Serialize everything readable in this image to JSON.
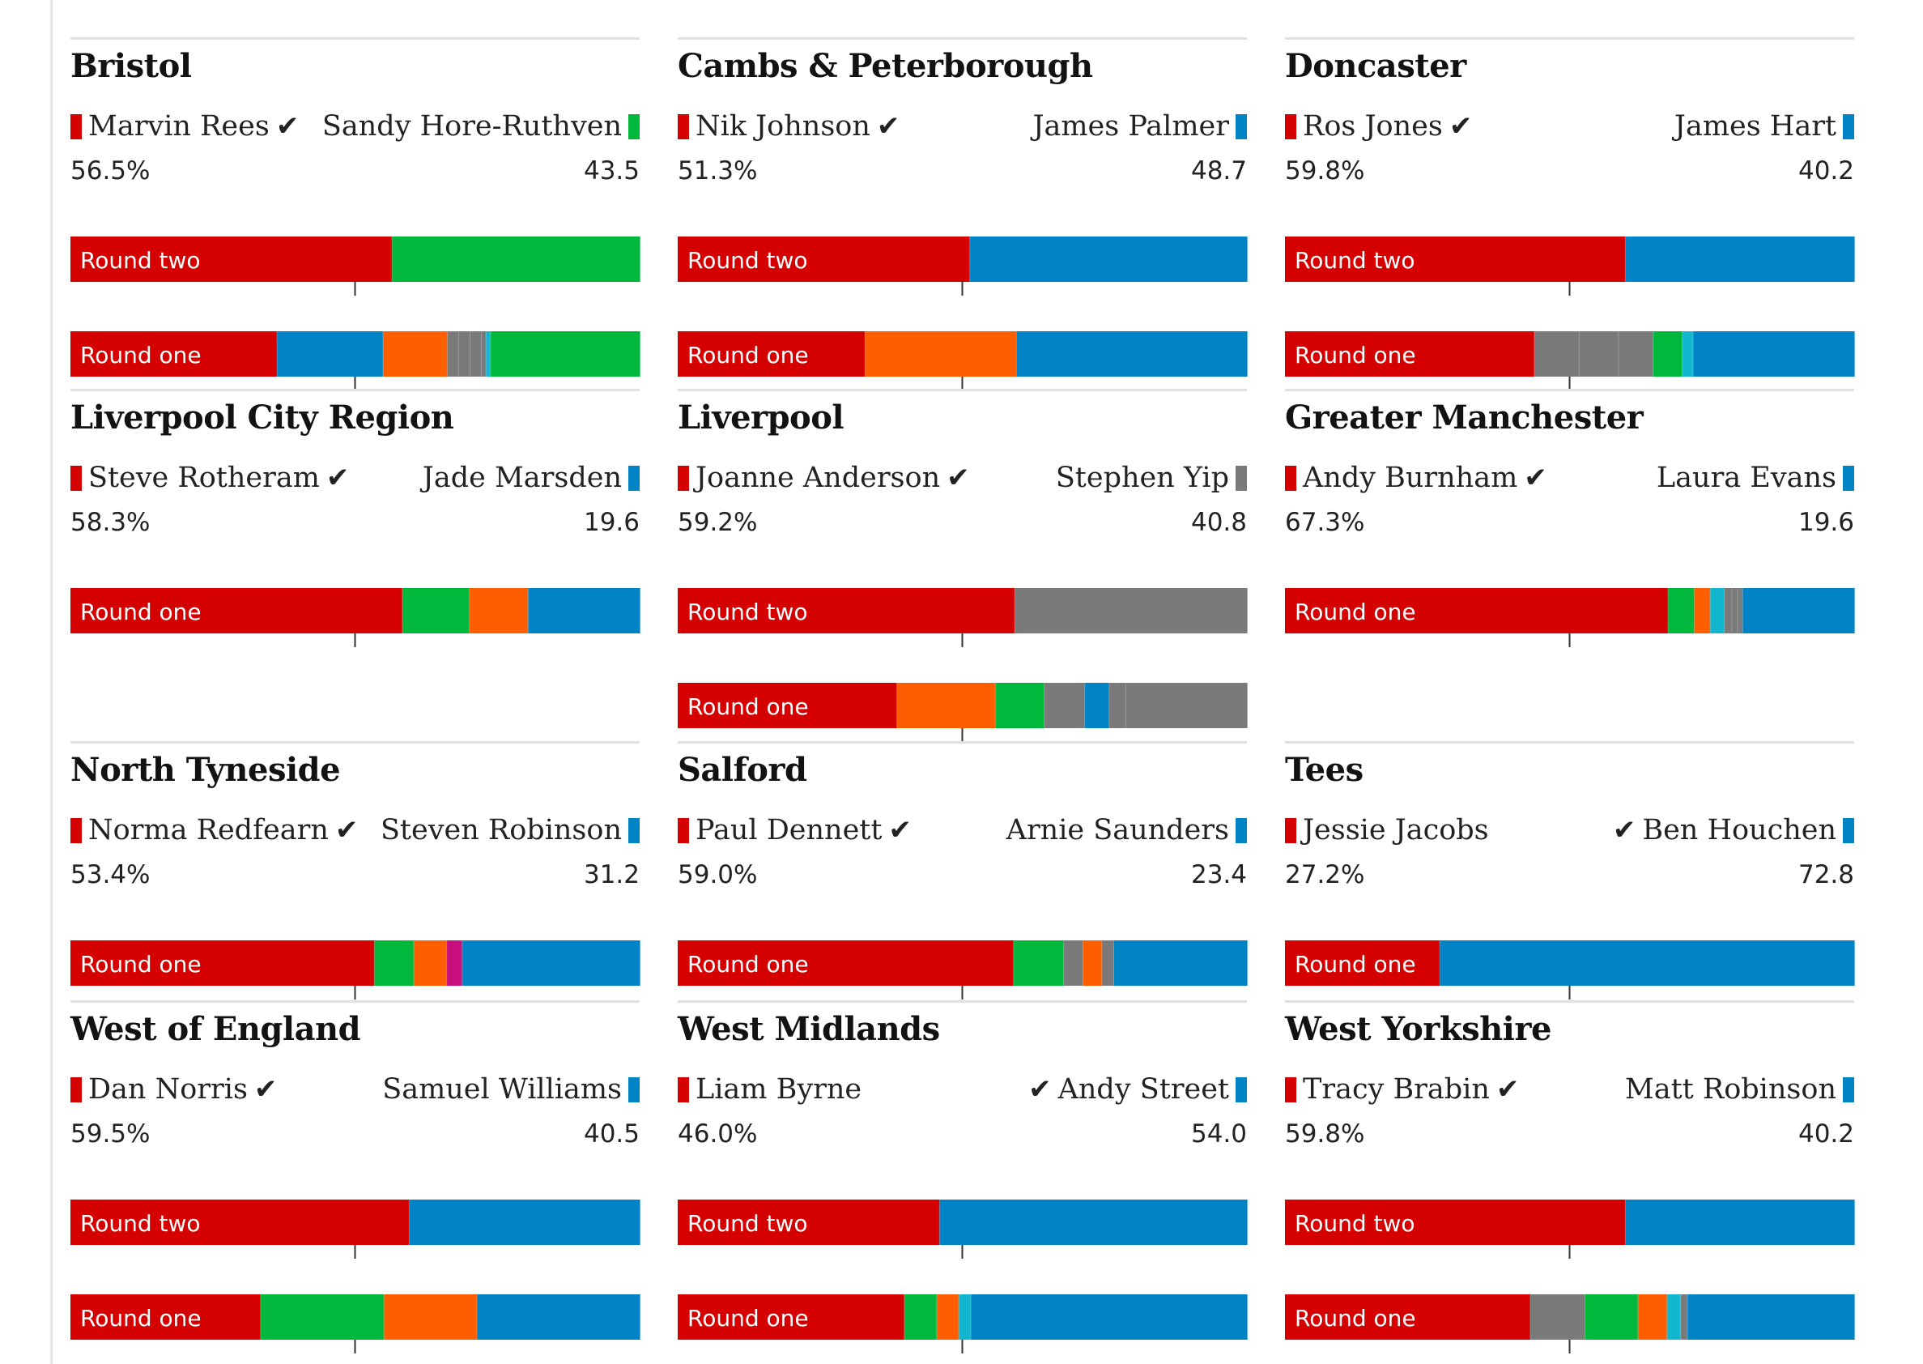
{
  "colors": {
    "Labour": "#d50000",
    "Conservative": "#0084c6",
    "Green": "#00b93c",
    "LibDem": "#ff5e00",
    "Other": "#7a7a7a",
    "Reform": "#12b6cf",
    "WEP": "#c80d7d"
  },
  "chart_data": [
    {
      "type": "bar",
      "title": "Bristol",
      "left": {
        "name": "Marvin Rees",
        "pct": "56.5%",
        "party": "Labour",
        "winner": true
      },
      "right": {
        "name": "Sandy Hore-Ruthven",
        "pct": "43.5",
        "party": "Green",
        "winner": false
      },
      "rounds": [
        {
          "label": "Round two",
          "segments": [
            {
              "party": "Labour",
              "value": 56.5
            },
            {
              "party": "Green",
              "value": 43.5
            }
          ]
        },
        {
          "label": "Round one",
          "segments": [
            {
              "party": "Labour",
              "value": 36.3
            },
            {
              "party": "Conservative",
              "value": 18.6
            },
            {
              "party": "LibDem",
              "value": 11.3
            },
            {
              "party": "Other",
              "value": 2.0
            },
            {
              "party": "Other",
              "value": 2.0
            },
            {
              "party": "Other",
              "value": 2.0
            },
            {
              "party": "Other",
              "value": 0.8
            },
            {
              "party": "Reform",
              "value": 0.8
            },
            {
              "party": "Green",
              "value": 26.2
            }
          ]
        }
      ]
    },
    {
      "type": "bar",
      "title": "Cambs & Peterborough",
      "left": {
        "name": "Nik Johnson",
        "pct": "51.3%",
        "party": "Labour",
        "winner": true
      },
      "right": {
        "name": "James Palmer",
        "pct": "48.7",
        "party": "Conservative",
        "winner": false
      },
      "rounds": [
        {
          "label": "Round two",
          "segments": [
            {
              "party": "Labour",
              "value": 51.3
            },
            {
              "party": "Conservative",
              "value": 48.7
            }
          ]
        },
        {
          "label": "Round one",
          "segments": [
            {
              "party": "Labour",
              "value": 32.9
            },
            {
              "party": "LibDem",
              "value": 26.6
            },
            {
              "party": "Conservative",
              "value": 40.5
            }
          ]
        }
      ]
    },
    {
      "type": "bar",
      "title": "Doncaster",
      "left": {
        "name": "Ros Jones",
        "pct": "59.8%",
        "party": "Labour",
        "winner": true
      },
      "right": {
        "name": "James Hart",
        "pct": "40.2",
        "party": "Conservative",
        "winner": false
      },
      "rounds": [
        {
          "label": "Round two",
          "segments": [
            {
              "party": "Labour",
              "value": 59.8
            },
            {
              "party": "Conservative",
              "value": 40.2
            }
          ]
        },
        {
          "label": "Round one",
          "segments": [
            {
              "party": "Labour",
              "value": 43.8
            },
            {
              "party": "Other",
              "value": 7.9
            },
            {
              "party": "Other",
              "value": 6.9
            },
            {
              "party": "Other",
              "value": 6.1
            },
            {
              "party": "Green",
              "value": 5.1
            },
            {
              "party": "Reform",
              "value": 1.9
            },
            {
              "party": "Conservative",
              "value": 28.3
            }
          ]
        }
      ]
    },
    {
      "type": "bar",
      "title": "Liverpool City Region",
      "left": {
        "name": "Steve Rotheram",
        "pct": "58.3%",
        "party": "Labour",
        "winner": true
      },
      "right": {
        "name": "Jade Marsden",
        "pct": "19.6",
        "party": "Conservative",
        "winner": false
      },
      "rounds": [
        {
          "label": "Round one",
          "segments": [
            {
              "party": "Labour",
              "value": 58.3
            },
            {
              "party": "Green",
              "value": 11.8
            },
            {
              "party": "LibDem",
              "value": 10.3
            },
            {
              "party": "Conservative",
              "value": 19.6
            }
          ]
        }
      ]
    },
    {
      "type": "bar",
      "title": "Liverpool",
      "left": {
        "name": "Joanne Anderson",
        "pct": "59.2%",
        "party": "Labour",
        "winner": true
      },
      "right": {
        "name": "Stephen Yip",
        "pct": "40.8",
        "party": "Other",
        "winner": false
      },
      "rounds": [
        {
          "label": "Round two",
          "segments": [
            {
              "party": "Labour",
              "value": 59.2
            },
            {
              "party": "Other",
              "value": 40.8
            }
          ]
        },
        {
          "label": "Round one",
          "segments": [
            {
              "party": "Labour",
              "value": 38.5
            },
            {
              "party": "LibDem",
              "value": 17.3
            },
            {
              "party": "Green",
              "value": 8.6
            },
            {
              "party": "Other",
              "value": 7.1
            },
            {
              "party": "Conservative",
              "value": 4.3
            },
            {
              "party": "Other",
              "value": 2.9
            },
            {
              "party": "Other",
              "value": 21.3
            }
          ]
        }
      ]
    },
    {
      "type": "bar",
      "title": "Greater Manchester",
      "left": {
        "name": "Andy Burnham",
        "pct": "67.3%",
        "party": "Labour",
        "winner": true
      },
      "right": {
        "name": "Laura Evans",
        "pct": "19.6",
        "party": "Conservative",
        "winner": false
      },
      "rounds": [
        {
          "label": "Round one",
          "segments": [
            {
              "party": "Labour",
              "value": 67.3
            },
            {
              "party": "Green",
              "value": 4.6
            },
            {
              "party": "LibDem",
              "value": 2.8
            },
            {
              "party": "Reform",
              "value": 2.5
            },
            {
              "party": "Other",
              "value": 1.3
            },
            {
              "party": "Other",
              "value": 1.0
            },
            {
              "party": "Other",
              "value": 0.9
            },
            {
              "party": "Conservative",
              "value": 19.6
            }
          ]
        }
      ]
    },
    {
      "type": "bar",
      "title": "North Tyneside",
      "left": {
        "name": "Norma Redfearn",
        "pct": "53.4%",
        "party": "Labour",
        "winner": true
      },
      "right": {
        "name": "Steven Robinson",
        "pct": "31.2",
        "party": "Conservative",
        "winner": false
      },
      "rounds": [
        {
          "label": "Round one",
          "segments": [
            {
              "party": "Labour",
              "value": 53.4
            },
            {
              "party": "Green",
              "value": 6.9
            },
            {
              "party": "LibDem",
              "value": 5.8
            },
            {
              "party": "WEP",
              "value": 2.7
            },
            {
              "party": "Conservative",
              "value": 31.2
            }
          ]
        }
      ]
    },
    {
      "type": "bar",
      "title": "Salford",
      "left": {
        "name": "Paul Dennett",
        "pct": "59.0%",
        "party": "Labour",
        "winner": true
      },
      "right": {
        "name": "Arnie Saunders",
        "pct": "23.4",
        "party": "Conservative",
        "winner": false
      },
      "rounds": [
        {
          "label": "Round one",
          "segments": [
            {
              "party": "Labour",
              "value": 59.0
            },
            {
              "party": "Green",
              "value": 8.8
            },
            {
              "party": "Other",
              "value": 3.4
            },
            {
              "party": "LibDem",
              "value": 3.3
            },
            {
              "party": "Other",
              "value": 2.1
            },
            {
              "party": "Conservative",
              "value": 23.4
            }
          ]
        }
      ]
    },
    {
      "type": "bar",
      "title": "Tees",
      "left": {
        "name": "Jessie Jacobs",
        "pct": "27.2%",
        "party": "Labour",
        "winner": false
      },
      "right": {
        "name": "Ben Houchen",
        "pct": "72.8",
        "party": "Conservative",
        "winner": true
      },
      "rounds": [
        {
          "label": "Round one",
          "segments": [
            {
              "party": "Labour",
              "value": 27.2
            },
            {
              "party": "Conservative",
              "value": 72.8
            }
          ]
        }
      ]
    },
    {
      "type": "bar",
      "title": "West of England",
      "left": {
        "name": "Dan Norris",
        "pct": "59.5%",
        "party": "Labour",
        "winner": true
      },
      "right": {
        "name": "Samuel Williams",
        "pct": "40.5",
        "party": "Conservative",
        "winner": false
      },
      "rounds": [
        {
          "label": "Round two",
          "segments": [
            {
              "party": "Labour",
              "value": 59.5
            },
            {
              "party": "Conservative",
              "value": 40.5
            }
          ]
        },
        {
          "label": "Round one",
          "segments": [
            {
              "party": "Labour",
              "value": 33.4
            },
            {
              "party": "Green",
              "value": 21.7
            },
            {
              "party": "LibDem",
              "value": 16.3
            },
            {
              "party": "Conservative",
              "value": 28.6
            }
          ]
        }
      ]
    },
    {
      "type": "bar",
      "title": "West Midlands",
      "left": {
        "name": "Liam Byrne",
        "pct": "46.0%",
        "party": "Labour",
        "winner": false
      },
      "right": {
        "name": "Andy Street",
        "pct": "54.0",
        "party": "Conservative",
        "winner": true
      },
      "rounds": [
        {
          "label": "Round two",
          "segments": [
            {
              "party": "Labour",
              "value": 46.0
            },
            {
              "party": "Conservative",
              "value": 54.0
            }
          ]
        },
        {
          "label": "Round one",
          "segments": [
            {
              "party": "Labour",
              "value": 39.8
            },
            {
              "party": "Green",
              "value": 5.7
            },
            {
              "party": "LibDem",
              "value": 3.9
            },
            {
              "party": "Reform",
              "value": 2.1
            },
            {
              "party": "Conservative",
              "value": 48.5
            }
          ]
        }
      ]
    },
    {
      "type": "bar",
      "title": "West Yorkshire",
      "left": {
        "name": "Tracy Brabin",
        "pct": "59.8%",
        "party": "Labour",
        "winner": true
      },
      "right": {
        "name": "Matt Robinson",
        "pct": "40.2",
        "party": "Conservative",
        "winner": false
      },
      "rounds": [
        {
          "label": "Round two",
          "segments": [
            {
              "party": "Labour",
              "value": 59.8
            },
            {
              "party": "Conservative",
              "value": 40.2
            }
          ]
        },
        {
          "label": "Round one",
          "segments": [
            {
              "party": "Labour",
              "value": 43.1
            },
            {
              "party": "Other",
              "value": 9.6
            },
            {
              "party": "Green",
              "value": 9.3
            },
            {
              "party": "LibDem",
              "value": 5.1
            },
            {
              "party": "Reform",
              "value": 2.4
            },
            {
              "party": "Other",
              "value": 1.2
            },
            {
              "party": "Conservative",
              "value": 29.3
            }
          ]
        }
      ]
    }
  ]
}
